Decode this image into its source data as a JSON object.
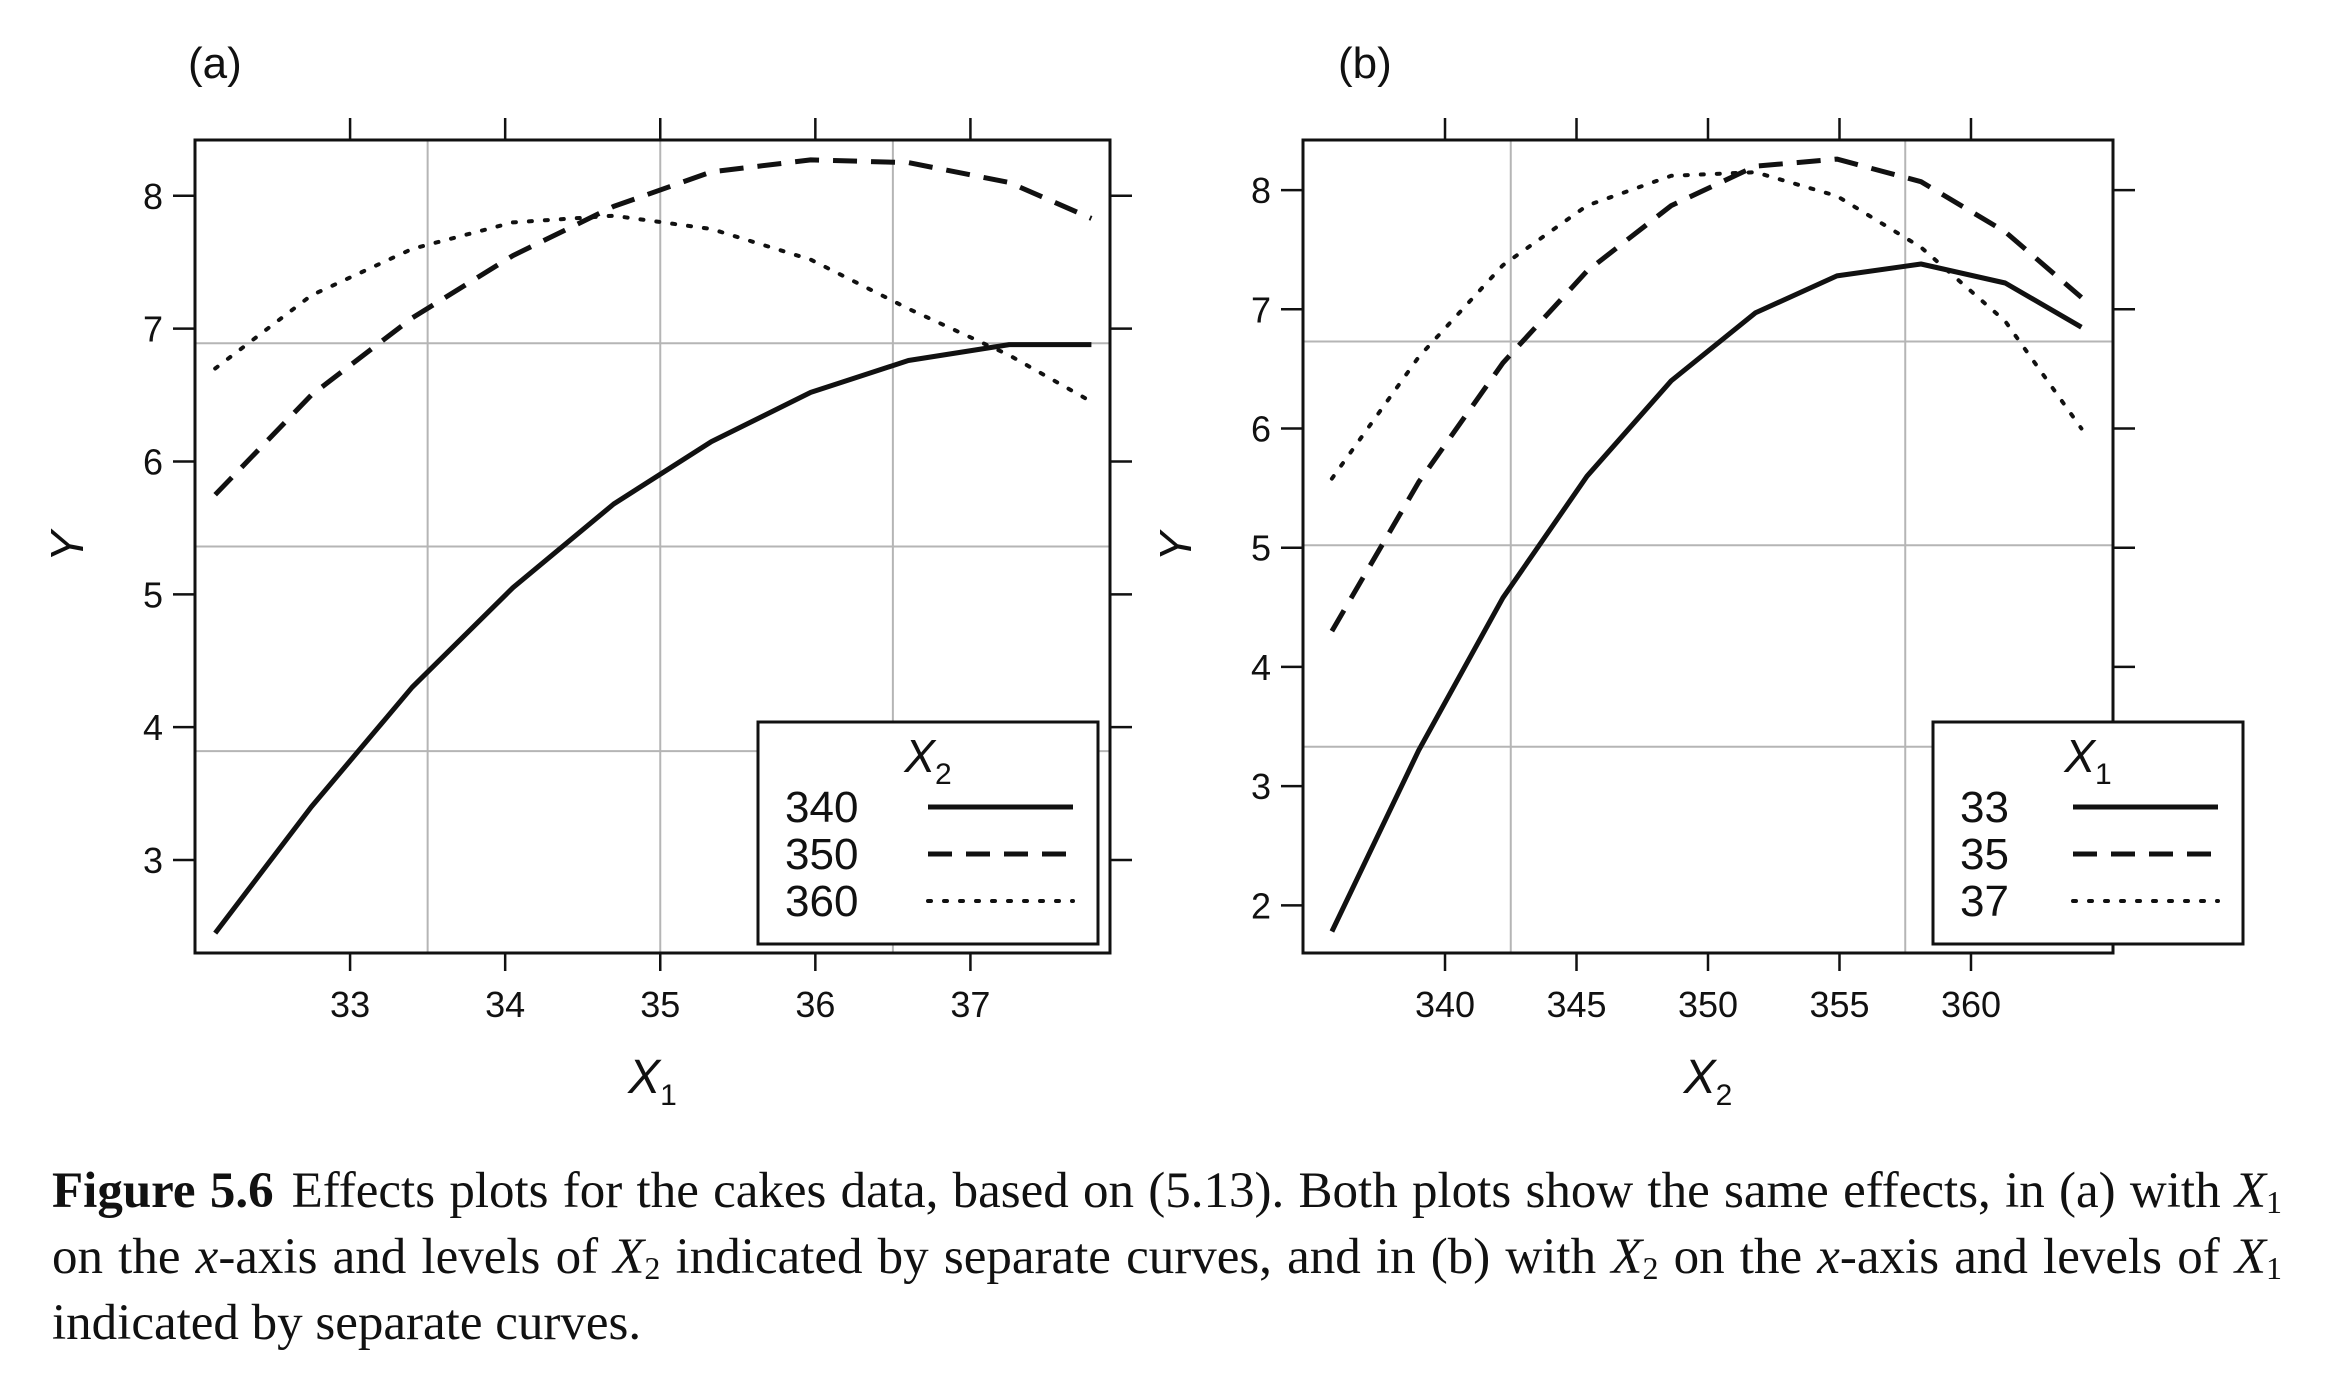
{
  "chart_data": [
    {
      "type": "line",
      "panel_label": "(a)",
      "xlabel": "X",
      "xlabel_sub": "1",
      "ylabel": "Y",
      "xlim": [
        32.0,
        37.9
      ],
      "ylim": [
        2.3,
        8.42
      ],
      "xticks": [
        33,
        34,
        35,
        36,
        37
      ],
      "yticks": [
        3,
        4,
        5,
        6,
        7,
        8
      ],
      "vgrid": [
        33.5,
        35.0,
        36.5
      ],
      "hgrid": [
        3.82,
        5.36,
        6.89
      ],
      "legend": {
        "title": "X",
        "title_sub": "2",
        "placement": "bottom-right"
      },
      "series": [
        {
          "name": "340",
          "style": "solid",
          "x": [
            32.13,
            32.75,
            33.4,
            34.05,
            34.7,
            35.33,
            35.97,
            36.6,
            37.25,
            37.78
          ],
          "y": [
            2.45,
            3.4,
            4.3,
            5.05,
            5.68,
            6.15,
            6.52,
            6.76,
            6.88,
            6.88
          ]
        },
        {
          "name": "350",
          "style": "dashed",
          "x": [
            32.13,
            32.75,
            33.4,
            34.05,
            34.7,
            35.33,
            35.97,
            36.6,
            37.25,
            37.78
          ],
          "y": [
            5.75,
            6.5,
            7.08,
            7.55,
            7.92,
            8.18,
            8.27,
            8.25,
            8.1,
            7.83
          ]
        },
        {
          "name": "360",
          "style": "dotted",
          "x": [
            32.13,
            32.75,
            33.4,
            34.05,
            34.7,
            35.33,
            35.97,
            36.6,
            37.25,
            37.78
          ],
          "y": [
            6.7,
            7.25,
            7.6,
            7.8,
            7.85,
            7.75,
            7.52,
            7.15,
            6.8,
            6.45
          ]
        }
      ]
    },
    {
      "type": "line",
      "panel_label": "(b)",
      "xlabel": "X",
      "xlabel_sub": "2",
      "ylabel": "Y",
      "xlim": [
        334.6,
        365.4
      ],
      "ylim": [
        1.6,
        8.42
      ],
      "xticks": [
        340,
        345,
        350,
        355,
        360
      ],
      "yticks": [
        2,
        3,
        4,
        5,
        6,
        7,
        8
      ],
      "vgrid": [
        342.5,
        357.5
      ],
      "hgrid": [
        3.33,
        5.02,
        6.73
      ],
      "legend": {
        "title": "X",
        "title_sub": "1",
        "placement": "bottom-right"
      },
      "series": [
        {
          "name": "33",
          "style": "solid",
          "x": [
            335.7,
            339.0,
            342.2,
            345.4,
            348.6,
            351.8,
            354.9,
            358.1,
            361.3,
            364.2
          ],
          "y": [
            1.78,
            3.3,
            4.58,
            5.6,
            6.4,
            6.97,
            7.28,
            7.38,
            7.22,
            6.85
          ]
        },
        {
          "name": "35",
          "style": "dashed",
          "x": [
            335.7,
            339.0,
            342.2,
            345.4,
            348.6,
            351.8,
            354.9,
            358.1,
            361.3,
            364.2
          ],
          "y": [
            4.3,
            5.55,
            6.55,
            7.32,
            7.87,
            8.2,
            8.26,
            8.07,
            7.65,
            7.1
          ]
        },
        {
          "name": "37",
          "style": "dotted",
          "x": [
            335.7,
            339.0,
            342.2,
            345.4,
            348.6,
            351.8,
            354.9,
            358.1,
            361.3,
            364.2
          ],
          "y": [
            5.58,
            6.6,
            7.37,
            7.87,
            8.12,
            8.15,
            7.95,
            7.52,
            6.9,
            6.0
          ]
        }
      ]
    }
  ],
  "caption": {
    "figure_number": "Figure 5.6",
    "part1": "Effects plots for the cakes data, based on (5.13). Both plots show the same effects, in (a) with ",
    "var_x": "X",
    "sub1": "1",
    "part2": " on the ",
    "var_x_axis": "x",
    "part3": "-axis and levels of ",
    "sub2": "2",
    "part4": " indicated by separate curves, and in (b) with ",
    "part5": " on the ",
    "part6": "-axis and levels of ",
    "part7": " indicated by separate curves."
  }
}
